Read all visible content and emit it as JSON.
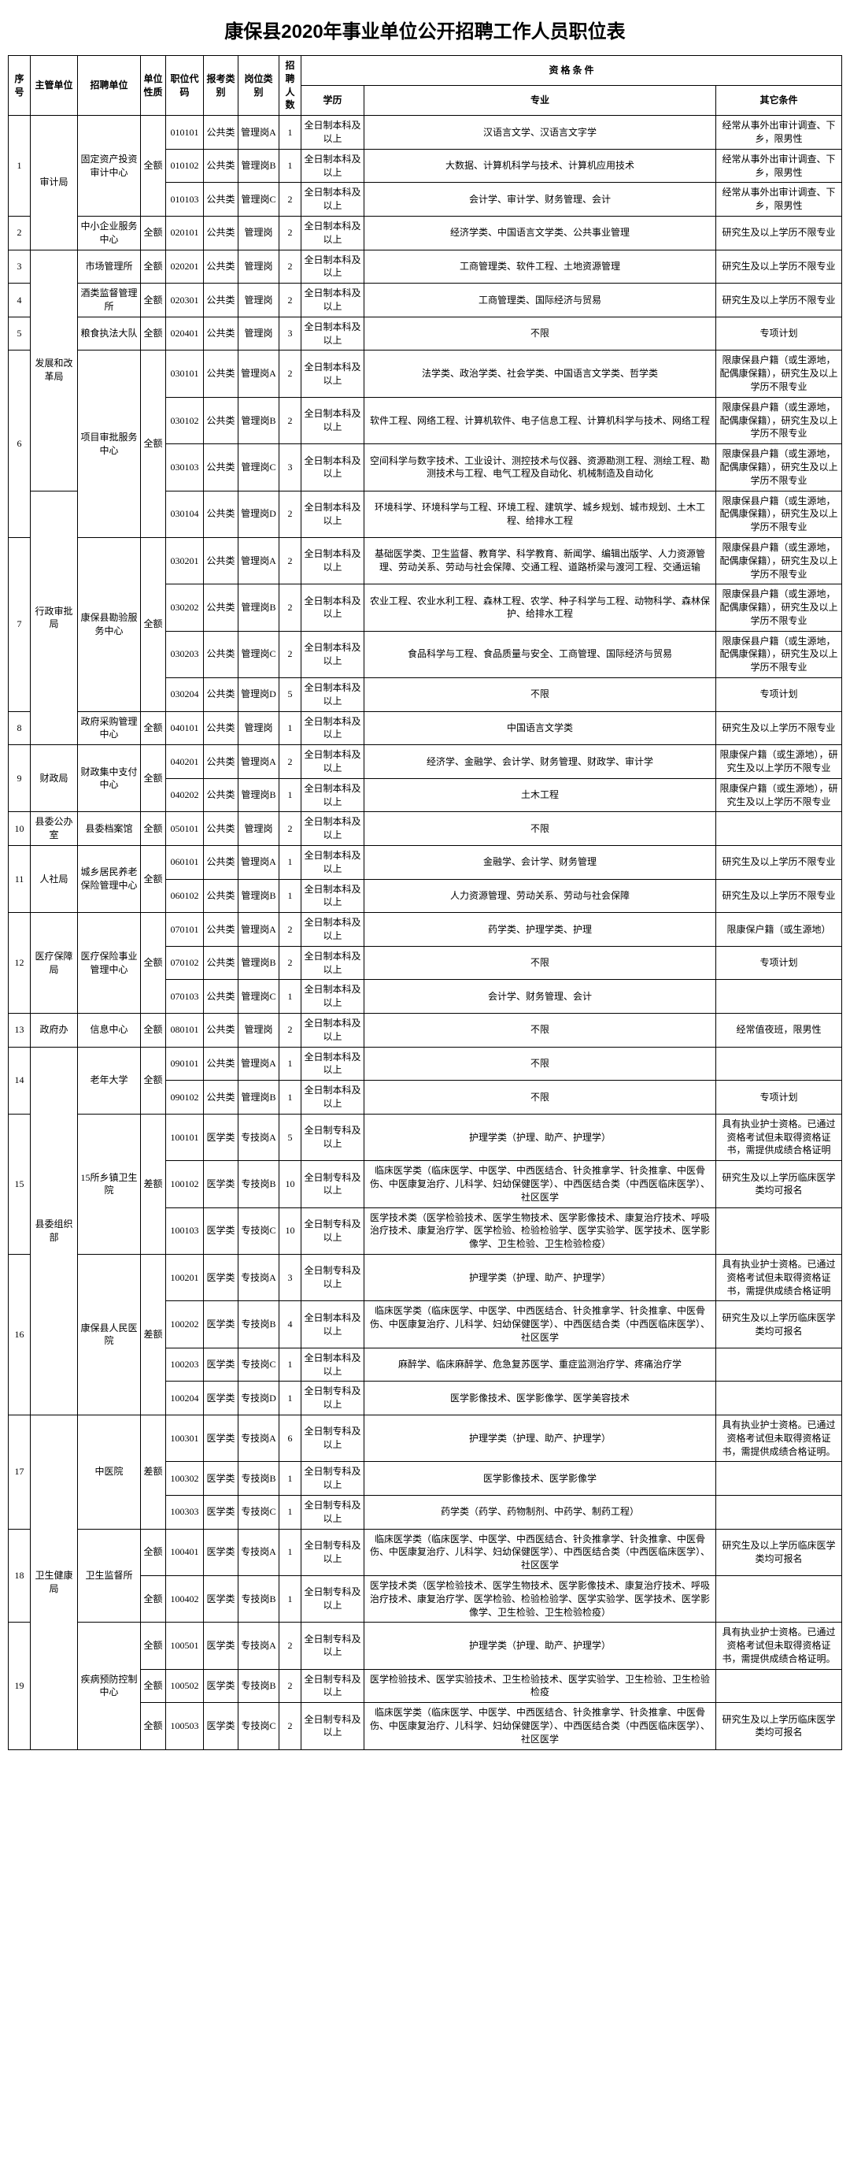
{
  "title": "康保县2020年事业单位公开招聘工作人员职位表",
  "headers": {
    "seq": "序号",
    "dept": "主管单位",
    "unit": "招聘单位",
    "nature": "单位性质",
    "poscode": "职位代码",
    "exam": "报考类别",
    "postcat": "岗位类别",
    "num": "招聘人数",
    "qual": "资 格 条 件",
    "edu": "学历",
    "major": "专业",
    "other": "其它条件"
  },
  "rows": [
    {
      "seq": "1",
      "dept": "审计局",
      "unit": "固定资产投资审计中心",
      "nature": "全额",
      "poscode": "010101",
      "exam": "公共类",
      "postcat": "管理岗A",
      "num": "1",
      "edu": "全日制本科及以上",
      "major": "汉语言文学、汉语言文字学",
      "other": "经常从事外出审计调查、下乡，限男性"
    },
    {
      "seq": "",
      "dept": "",
      "unit": "",
      "nature": "",
      "poscode": "010102",
      "exam": "公共类",
      "postcat": "管理岗B",
      "num": "1",
      "edu": "全日制本科及以上",
      "major": "大数据、计算机科学与技术、计算机应用技术",
      "other": "经常从事外出审计调查、下乡，限男性"
    },
    {
      "seq": "",
      "dept": "",
      "unit": "",
      "nature": "",
      "poscode": "010103",
      "exam": "公共类",
      "postcat": "管理岗C",
      "num": "2",
      "edu": "全日制本科及以上",
      "major": "会计学、审计学、财务管理、会计",
      "other": "经常从事外出审计调查、下乡，限男性"
    },
    {
      "seq": "2",
      "dept": "",
      "unit": "中小企业服务中心",
      "nature": "全额",
      "poscode": "020101",
      "exam": "公共类",
      "postcat": "管理岗",
      "num": "2",
      "edu": "全日制本科及以上",
      "major": "经济学类、中国语言文学类、公共事业管理",
      "other": "研究生及以上学历不限专业"
    },
    {
      "seq": "3",
      "dept": "发展和改革局",
      "unit": "市场管理所",
      "nature": "全额",
      "poscode": "020201",
      "exam": "公共类",
      "postcat": "管理岗",
      "num": "2",
      "edu": "全日制本科及以上",
      "major": "工商管理类、软件工程、土地资源管理",
      "other": "研究生及以上学历不限专业"
    },
    {
      "seq": "4",
      "dept": "",
      "unit": "酒类监督管理所",
      "nature": "全额",
      "poscode": "020301",
      "exam": "公共类",
      "postcat": "管理岗",
      "num": "2",
      "edu": "全日制本科及以上",
      "major": "工商管理类、国际经济与贸易",
      "other": "研究生及以上学历不限专业"
    },
    {
      "seq": "5",
      "dept": "",
      "unit": "粮食执法大队",
      "nature": "全额",
      "poscode": "020401",
      "exam": "公共类",
      "postcat": "管理岗",
      "num": "3",
      "edu": "全日制本科及以上",
      "major": "不限",
      "other": "专项计划"
    },
    {
      "seq": "6",
      "dept": "",
      "unit": "项目审批服务中心",
      "nature": "全额",
      "poscode": "030101",
      "exam": "公共类",
      "postcat": "管理岗A",
      "num": "2",
      "edu": "全日制本科及以上",
      "major": "法学类、政治学类、社会学类、中国语言文学类、哲学类",
      "other": "限康保县户籍（或生源地，配偶康保籍），研究生及以上学历不限专业"
    },
    {
      "seq": "",
      "dept": "",
      "unit": "",
      "nature": "",
      "poscode": "030102",
      "exam": "公共类",
      "postcat": "管理岗B",
      "num": "2",
      "edu": "全日制本科及以上",
      "major": "软件工程、网络工程、计算机软件、电子信息工程、计算机科学与技术、网络工程",
      "other": "限康保县户籍（或生源地，配偶康保籍），研究生及以上学历不限专业"
    },
    {
      "seq": "",
      "dept": "",
      "unit": "",
      "nature": "",
      "poscode": "030103",
      "exam": "公共类",
      "postcat": "管理岗C",
      "num": "3",
      "edu": "全日制本科及以上",
      "major": "空间科学与数字技术、工业设计、测控技术与仪器、资源勘测工程、测绘工程、勘测技术与工程、电气工程及自动化、机械制造及自动化",
      "other": "限康保县户籍（或生源地，配偶康保籍），研究生及以上学历不限专业"
    },
    {
      "seq": "",
      "dept": "行政审批局",
      "unit": "",
      "nature": "",
      "poscode": "030104",
      "exam": "公共类",
      "postcat": "管理岗D",
      "num": "2",
      "edu": "全日制本科及以上",
      "major": "环境科学、环境科学与工程、环境工程、建筑学、城乡规划、城市规划、土木工程、给排水工程",
      "other": "限康保县户籍（或生源地，配偶康保籍），研究生及以上学历不限专业"
    },
    {
      "seq": "7",
      "dept": "",
      "unit": "康保县勘验服务中心",
      "nature": "全额",
      "poscode": "030201",
      "exam": "公共类",
      "postcat": "管理岗A",
      "num": "2",
      "edu": "全日制本科及以上",
      "major": "基础医学类、卫生监督、教育学、科学教育、新闻学、编辑出版学、人力资源管理、劳动关系、劳动与社会保障、交通工程、道路桥梁与渡河工程、交通运输",
      "other": "限康保县户籍（或生源地，配偶康保籍），研究生及以上学历不限专业"
    },
    {
      "seq": "",
      "dept": "",
      "unit": "",
      "nature": "",
      "poscode": "030202",
      "exam": "公共类",
      "postcat": "管理岗B",
      "num": "2",
      "edu": "全日制本科及以上",
      "major": "农业工程、农业水利工程、森林工程、农学、种子科学与工程、动物科学、森林保护、给排水工程",
      "other": "限康保县户籍（或生源地，配偶康保籍），研究生及以上学历不限专业"
    },
    {
      "seq": "",
      "dept": "",
      "unit": "",
      "nature": "",
      "poscode": "030203",
      "exam": "公共类",
      "postcat": "管理岗C",
      "num": "2",
      "edu": "全日制本科及以上",
      "major": "食品科学与工程、食品质量与安全、工商管理、国际经济与贸易",
      "other": "限康保县户籍（或生源地，配偶康保籍），研究生及以上学历不限专业"
    },
    {
      "seq": "",
      "dept": "",
      "unit": "",
      "nature": "",
      "poscode": "030204",
      "exam": "公共类",
      "postcat": "管理岗D",
      "num": "5",
      "edu": "全日制本科及以上",
      "major": "不限",
      "other": "专项计划"
    },
    {
      "seq": "8",
      "dept": "",
      "unit": "政府采购管理中心",
      "nature": "全额",
      "poscode": "040101",
      "exam": "公共类",
      "postcat": "管理岗",
      "num": "1",
      "edu": "全日制本科及以上",
      "major": "中国语言文学类",
      "other": "研究生及以上学历不限专业"
    },
    {
      "seq": "9",
      "dept": "财政局",
      "unit": "财政集中支付中心",
      "nature": "全额",
      "poscode": "040201",
      "exam": "公共类",
      "postcat": "管理岗A",
      "num": "2",
      "edu": "全日制本科及以上",
      "major": "经济学、金融学、会计学、财务管理、财政学、审计学",
      "other": "限康保户籍（或生源地），研究生及以上学历不限专业"
    },
    {
      "seq": "",
      "dept": "",
      "unit": "",
      "nature": "",
      "poscode": "040202",
      "exam": "公共类",
      "postcat": "管理岗B",
      "num": "1",
      "edu": "全日制本科及以上",
      "major": "土木工程",
      "other": "限康保户籍（或生源地），研究生及以上学历不限专业"
    },
    {
      "seq": "10",
      "dept": "县委公办室",
      "unit": "县委档案馆",
      "nature": "全额",
      "poscode": "050101",
      "exam": "公共类",
      "postcat": "管理岗",
      "num": "2",
      "edu": "全日制本科及以上",
      "major": "不限",
      "other": ""
    },
    {
      "seq": "11",
      "dept": "人社局",
      "unit": "城乡居民养老保险管理中心",
      "nature": "全额",
      "poscode": "060101",
      "exam": "公共类",
      "postcat": "管理岗A",
      "num": "1",
      "edu": "全日制本科及以上",
      "major": "金融学、会计学、财务管理",
      "other": "研究生及以上学历不限专业"
    },
    {
      "seq": "",
      "dept": "",
      "unit": "",
      "nature": "",
      "poscode": "060102",
      "exam": "公共类",
      "postcat": "管理岗B",
      "num": "1",
      "edu": "全日制本科及以上",
      "major": "人力资源管理、劳动关系、劳动与社会保障",
      "other": "研究生及以上学历不限专业"
    },
    {
      "seq": "12",
      "dept": "医疗保障局",
      "unit": "医疗保险事业管理中心",
      "nature": "全额",
      "poscode": "070101",
      "exam": "公共类",
      "postcat": "管理岗A",
      "num": "2",
      "edu": "全日制本科及以上",
      "major": "药学类、护理学类、护理",
      "other": "限康保户籍（或生源地）"
    },
    {
      "seq": "",
      "dept": "",
      "unit": "",
      "nature": "",
      "poscode": "070102",
      "exam": "公共类",
      "postcat": "管理岗B",
      "num": "2",
      "edu": "全日制本科及以上",
      "major": "不限",
      "other": "专项计划"
    },
    {
      "seq": "",
      "dept": "",
      "unit": "",
      "nature": "",
      "poscode": "070103",
      "exam": "公共类",
      "postcat": "管理岗C",
      "num": "1",
      "edu": "全日制本科及以上",
      "major": "会计学、财务管理、会计",
      "other": ""
    },
    {
      "seq": "13",
      "dept": "政府办",
      "unit": "信息中心",
      "nature": "全额",
      "poscode": "080101",
      "exam": "公共类",
      "postcat": "管理岗",
      "num": "2",
      "edu": "全日制本科及以上",
      "major": "不限",
      "other": "经常值夜班，限男性"
    },
    {
      "seq": "14",
      "dept": "县委组织部",
      "unit": "老年大学",
      "nature": "全额",
      "poscode": "090101",
      "exam": "公共类",
      "postcat": "管理岗A",
      "num": "1",
      "edu": "全日制本科及以上",
      "major": "不限",
      "other": ""
    },
    {
      "seq": "",
      "dept": "",
      "unit": "",
      "nature": "",
      "poscode": "090102",
      "exam": "公共类",
      "postcat": "管理岗B",
      "num": "1",
      "edu": "全日制本科及以上",
      "major": "不限",
      "other": "专项计划"
    },
    {
      "seq": "15",
      "dept": "",
      "unit": "15所乡镇卫生院",
      "nature": "差额",
      "poscode": "100101",
      "exam": "医学类",
      "postcat": "专技岗A",
      "num": "5",
      "edu": "全日制专科及以上",
      "major": "护理学类（护理、助产、护理学）",
      "other": "具有执业护士资格。已通过资格考试但未取得资格证书，需提供成绩合格证明"
    },
    {
      "seq": "",
      "dept": "",
      "unit": "",
      "nature": "",
      "poscode": "100102",
      "exam": "医学类",
      "postcat": "专技岗B",
      "num": "10",
      "edu": "全日制专科及以上",
      "major": "临床医学类（临床医学、中医学、中西医结合、针灸推拿学、针灸推拿、中医骨伤、中医康复治疗、儿科学、妇幼保健医学）、中西医结合类（中西医临床医学）、社区医学",
      "other": "研究生及以上学历临床医学类均可报名"
    },
    {
      "seq": "",
      "dept": "",
      "unit": "",
      "nature": "",
      "poscode": "100103",
      "exam": "医学类",
      "postcat": "专技岗C",
      "num": "10",
      "edu": "全日制专科及以上",
      "major": "医学技术类（医学检验技术、医学生物技术、医学影像技术、康复治疗技术、呼吸治疗技术、康复治疗学、医学检验、检验检验学、医学实验学、医学技术、医学影像学、卫生检验、卫生检验检疫）",
      "other": ""
    },
    {
      "seq": "16",
      "dept": "",
      "unit": "康保县人民医院",
      "nature": "差额",
      "poscode": "100201",
      "exam": "医学类",
      "postcat": "专技岗A",
      "num": "3",
      "edu": "全日制专科及以上",
      "major": "护理学类（护理、助产、护理学）",
      "other": "具有执业护士资格。已通过资格考试但未取得资格证书，需提供成绩合格证明"
    },
    {
      "seq": "",
      "dept": "",
      "unit": "",
      "nature": "",
      "poscode": "100202",
      "exam": "医学类",
      "postcat": "专技岗B",
      "num": "4",
      "edu": "全日制本科及以上",
      "major": "临床医学类（临床医学、中医学、中西医结合、针灸推拿学、针灸推拿、中医骨伤、中医康复治疗、儿科学、妇幼保健医学）、中西医结合类（中西医临床医学）、社区医学",
      "other": "研究生及以上学历临床医学类均可报名"
    },
    {
      "seq": "",
      "dept": "",
      "unit": "",
      "nature": "",
      "poscode": "100203",
      "exam": "医学类",
      "postcat": "专技岗C",
      "num": "1",
      "edu": "全日制本科及以上",
      "major": "麻醉学、临床麻醉学、危急复苏医学、重症监测治疗学、疼痛治疗学",
      "other": ""
    },
    {
      "seq": "",
      "dept": "",
      "unit": "",
      "nature": "",
      "poscode": "100204",
      "exam": "医学类",
      "postcat": "专技岗D",
      "num": "1",
      "edu": "全日制专科及以上",
      "major": "医学影像技术、医学影像学、医学美容技术",
      "other": ""
    },
    {
      "seq": "17",
      "dept": "卫生健康局",
      "unit": "中医院",
      "nature": "差额",
      "poscode": "100301",
      "exam": "医学类",
      "postcat": "专技岗A",
      "num": "6",
      "edu": "全日制专科及以上",
      "major": "护理学类（护理、助产、护理学）",
      "other": "具有执业护士资格。已通过资格考试但未取得资格证书，需提供成绩合格证明。"
    },
    {
      "seq": "",
      "dept": "",
      "unit": "",
      "nature": "",
      "poscode": "100302",
      "exam": "医学类",
      "postcat": "专技岗B",
      "num": "1",
      "edu": "全日制专科及以上",
      "major": "医学影像技术、医学影像学",
      "other": ""
    },
    {
      "seq": "",
      "dept": "",
      "unit": "",
      "nature": "",
      "poscode": "100303",
      "exam": "医学类",
      "postcat": "专技岗C",
      "num": "1",
      "edu": "全日制专科及以上",
      "major": "药学类（药学、药物制剂、中药学、制药工程）",
      "other": ""
    },
    {
      "seq": "18",
      "dept": "",
      "unit": "卫生监督所",
      "nature": "全额",
      "poscode": "100401",
      "exam": "医学类",
      "postcat": "专技岗A",
      "num": "1",
      "edu": "全日制专科及以上",
      "major": "临床医学类（临床医学、中医学、中西医结合、针灸推拿学、针灸推拿、中医骨伤、中医康复治疗、儿科学、妇幼保健医学）、中西医结合类（中西医临床医学）、社区医学",
      "other": "研究生及以上学历临床医学类均可报名"
    },
    {
      "seq": "",
      "dept": "",
      "unit": "",
      "nature": "全额",
      "poscode": "100402",
      "exam": "医学类",
      "postcat": "专技岗B",
      "num": "1",
      "edu": "全日制专科及以上",
      "major": "医学技术类（医学检验技术、医学生物技术、医学影像技术、康复治疗技术、呼吸治疗技术、康复治疗学、医学检验、检验检验学、医学实验学、医学技术、医学影像学、卫生检验、卫生检验检疫）",
      "other": ""
    },
    {
      "seq": "19",
      "dept": "",
      "unit": "疾病预防控制中心",
      "nature": "全额",
      "poscode": "100501",
      "exam": "医学类",
      "postcat": "专技岗A",
      "num": "2",
      "edu": "全日制专科及以上",
      "major": "护理学类（护理、助产、护理学）",
      "other": "具有执业护士资格。已通过资格考试但未取得资格证书，需提供成绩合格证明。"
    },
    {
      "seq": "",
      "dept": "",
      "unit": "",
      "nature": "全额",
      "poscode": "100502",
      "exam": "医学类",
      "postcat": "专技岗B",
      "num": "2",
      "edu": "全日制专科及以上",
      "major": "医学检验技术、医学实验技术、卫生检验技术、医学实验学、卫生检验、卫生检验检疫",
      "other": ""
    },
    {
      "seq": "",
      "dept": "",
      "unit": "",
      "nature": "全额",
      "poscode": "100503",
      "exam": "医学类",
      "postcat": "专技岗C",
      "num": "2",
      "edu": "全日制专科及以上",
      "major": "临床医学类（临床医学、中医学、中西医结合、针灸推拿学、针灸推拿、中医骨伤、中医康复治疗、儿科学、妇幼保健医学）、中西医结合类（中西医临床医学）、社区医学",
      "other": "研究生及以上学历临床医学类均可报名"
    }
  ],
  "merges": {
    "seq": {
      "1": 3,
      "3": 1,
      "6": 4,
      "7": 4,
      "9": 2,
      "11": 2,
      "12": 3,
      "14": 2,
      "15": 3,
      "16": 4,
      "17": 3,
      "18": 2,
      "19": 3
    },
    "dept": {
      "审计局": 3,
      "发展和改革局": 4,
      "行政审批局": 8,
      "财政局": 3,
      "人社局": 2,
      "医疗保障局": 3,
      "县委组织部": 2,
      "卫生健康局": 16
    },
    "unit": {
      "固定资产投资审计中心": 3,
      "项目审批服务中心": 4,
      "康保县勘验服务中心": 4,
      "财政集中支付中心": 2,
      "城乡居民养老保险管理中心": 2,
      "医疗保险事业管理中心": 3,
      "老年大学": 2,
      "15所乡镇卫生院": 3,
      "康保县人民医院": 4,
      "中医院": 3,
      "卫生监督所": 2,
      "疾病预防控制中心": 3
    },
    "nature_groups": [
      [
        0,
        3
      ],
      [
        3,
        1
      ],
      [
        4,
        1
      ],
      [
        5,
        1
      ],
      [
        6,
        1
      ],
      [
        7,
        4
      ],
      [
        11,
        4
      ],
      [
        14,
        1
      ],
      [
        15,
        2
      ],
      [
        17,
        1
      ],
      [
        18,
        2
      ],
      [
        20,
        3
      ],
      [
        23,
        1
      ],
      [
        24,
        2
      ],
      [
        26,
        3
      ],
      [
        29,
        4
      ],
      [
        33,
        3
      ]
    ]
  }
}
